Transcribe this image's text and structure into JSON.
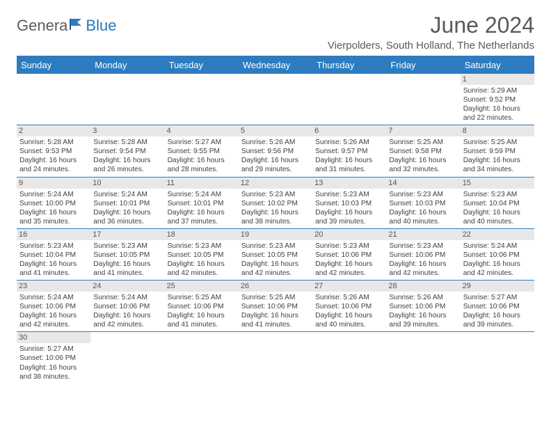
{
  "logo": {
    "part1": "Genera",
    "part2": "Blue"
  },
  "title": "June 2024",
  "location": "Vierpolders, South Holland, The Netherlands",
  "dow": [
    "Sunday",
    "Monday",
    "Tuesday",
    "Wednesday",
    "Thursday",
    "Friday",
    "Saturday"
  ],
  "colors": {
    "header_bg": "#2d7cc0",
    "header_text": "#ffffff",
    "daynum_bg": "#e8e8e8",
    "text": "#404040",
    "rule": "#2d7cc0"
  },
  "weeks": [
    [
      {
        "n": "",
        "empty": true
      },
      {
        "n": "",
        "empty": true
      },
      {
        "n": "",
        "empty": true
      },
      {
        "n": "",
        "empty": true
      },
      {
        "n": "",
        "empty": true
      },
      {
        "n": "",
        "empty": true
      },
      {
        "n": "1",
        "sr": "Sunrise: 5:29 AM",
        "ss": "Sunset: 9:52 PM",
        "d1": "Daylight: 16 hours",
        "d2": "and 22 minutes."
      }
    ],
    [
      {
        "n": "2",
        "sr": "Sunrise: 5:28 AM",
        "ss": "Sunset: 9:53 PM",
        "d1": "Daylight: 16 hours",
        "d2": "and 24 minutes."
      },
      {
        "n": "3",
        "sr": "Sunrise: 5:28 AM",
        "ss": "Sunset: 9:54 PM",
        "d1": "Daylight: 16 hours",
        "d2": "and 26 minutes."
      },
      {
        "n": "4",
        "sr": "Sunrise: 5:27 AM",
        "ss": "Sunset: 9:55 PM",
        "d1": "Daylight: 16 hours",
        "d2": "and 28 minutes."
      },
      {
        "n": "5",
        "sr": "Sunrise: 5:26 AM",
        "ss": "Sunset: 9:56 PM",
        "d1": "Daylight: 16 hours",
        "d2": "and 29 minutes."
      },
      {
        "n": "6",
        "sr": "Sunrise: 5:26 AM",
        "ss": "Sunset: 9:57 PM",
        "d1": "Daylight: 16 hours",
        "d2": "and 31 minutes."
      },
      {
        "n": "7",
        "sr": "Sunrise: 5:25 AM",
        "ss": "Sunset: 9:58 PM",
        "d1": "Daylight: 16 hours",
        "d2": "and 32 minutes."
      },
      {
        "n": "8",
        "sr": "Sunrise: 5:25 AM",
        "ss": "Sunset: 9:59 PM",
        "d1": "Daylight: 16 hours",
        "d2": "and 34 minutes."
      }
    ],
    [
      {
        "n": "9",
        "sr": "Sunrise: 5:24 AM",
        "ss": "Sunset: 10:00 PM",
        "d1": "Daylight: 16 hours",
        "d2": "and 35 minutes."
      },
      {
        "n": "10",
        "sr": "Sunrise: 5:24 AM",
        "ss": "Sunset: 10:01 PM",
        "d1": "Daylight: 16 hours",
        "d2": "and 36 minutes."
      },
      {
        "n": "11",
        "sr": "Sunrise: 5:24 AM",
        "ss": "Sunset: 10:01 PM",
        "d1": "Daylight: 16 hours",
        "d2": "and 37 minutes."
      },
      {
        "n": "12",
        "sr": "Sunrise: 5:23 AM",
        "ss": "Sunset: 10:02 PM",
        "d1": "Daylight: 16 hours",
        "d2": "and 38 minutes."
      },
      {
        "n": "13",
        "sr": "Sunrise: 5:23 AM",
        "ss": "Sunset: 10:03 PM",
        "d1": "Daylight: 16 hours",
        "d2": "and 39 minutes."
      },
      {
        "n": "14",
        "sr": "Sunrise: 5:23 AM",
        "ss": "Sunset: 10:03 PM",
        "d1": "Daylight: 16 hours",
        "d2": "and 40 minutes."
      },
      {
        "n": "15",
        "sr": "Sunrise: 5:23 AM",
        "ss": "Sunset: 10:04 PM",
        "d1": "Daylight: 16 hours",
        "d2": "and 40 minutes."
      }
    ],
    [
      {
        "n": "16",
        "sr": "Sunrise: 5:23 AM",
        "ss": "Sunset: 10:04 PM",
        "d1": "Daylight: 16 hours",
        "d2": "and 41 minutes."
      },
      {
        "n": "17",
        "sr": "Sunrise: 5:23 AM",
        "ss": "Sunset: 10:05 PM",
        "d1": "Daylight: 16 hours",
        "d2": "and 41 minutes."
      },
      {
        "n": "18",
        "sr": "Sunrise: 5:23 AM",
        "ss": "Sunset: 10:05 PM",
        "d1": "Daylight: 16 hours",
        "d2": "and 42 minutes."
      },
      {
        "n": "19",
        "sr": "Sunrise: 5:23 AM",
        "ss": "Sunset: 10:05 PM",
        "d1": "Daylight: 16 hours",
        "d2": "and 42 minutes."
      },
      {
        "n": "20",
        "sr": "Sunrise: 5:23 AM",
        "ss": "Sunset: 10:06 PM",
        "d1": "Daylight: 16 hours",
        "d2": "and 42 minutes."
      },
      {
        "n": "21",
        "sr": "Sunrise: 5:23 AM",
        "ss": "Sunset: 10:06 PM",
        "d1": "Daylight: 16 hours",
        "d2": "and 42 minutes."
      },
      {
        "n": "22",
        "sr": "Sunrise: 5:24 AM",
        "ss": "Sunset: 10:06 PM",
        "d1": "Daylight: 16 hours",
        "d2": "and 42 minutes."
      }
    ],
    [
      {
        "n": "23",
        "sr": "Sunrise: 5:24 AM",
        "ss": "Sunset: 10:06 PM",
        "d1": "Daylight: 16 hours",
        "d2": "and 42 minutes."
      },
      {
        "n": "24",
        "sr": "Sunrise: 5:24 AM",
        "ss": "Sunset: 10:06 PM",
        "d1": "Daylight: 16 hours",
        "d2": "and 42 minutes."
      },
      {
        "n": "25",
        "sr": "Sunrise: 5:25 AM",
        "ss": "Sunset: 10:06 PM",
        "d1": "Daylight: 16 hours",
        "d2": "and 41 minutes."
      },
      {
        "n": "26",
        "sr": "Sunrise: 5:25 AM",
        "ss": "Sunset: 10:06 PM",
        "d1": "Daylight: 16 hours",
        "d2": "and 41 minutes."
      },
      {
        "n": "27",
        "sr": "Sunrise: 5:26 AM",
        "ss": "Sunset: 10:06 PM",
        "d1": "Daylight: 16 hours",
        "d2": "and 40 minutes."
      },
      {
        "n": "28",
        "sr": "Sunrise: 5:26 AM",
        "ss": "Sunset: 10:06 PM",
        "d1": "Daylight: 16 hours",
        "d2": "and 39 minutes."
      },
      {
        "n": "29",
        "sr": "Sunrise: 5:27 AM",
        "ss": "Sunset: 10:06 PM",
        "d1": "Daylight: 16 hours",
        "d2": "and 39 minutes."
      }
    ],
    [
      {
        "n": "30",
        "sr": "Sunrise: 5:27 AM",
        "ss": "Sunset: 10:06 PM",
        "d1": "Daylight: 16 hours",
        "d2": "and 38 minutes."
      },
      {
        "n": "",
        "empty": true
      },
      {
        "n": "",
        "empty": true
      },
      {
        "n": "",
        "empty": true
      },
      {
        "n": "",
        "empty": true
      },
      {
        "n": "",
        "empty": true
      },
      {
        "n": "",
        "empty": true
      }
    ]
  ]
}
